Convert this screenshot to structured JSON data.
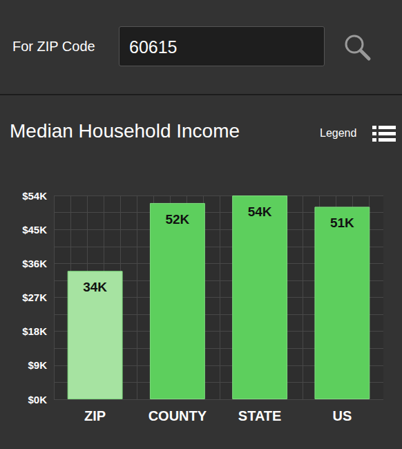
{
  "page": {
    "search_label": "For ZIP Code",
    "zip_code": "60615",
    "legend_button": "Legend"
  },
  "chart_data": {
    "type": "bar",
    "title": "Median Household Income",
    "categories": [
      "ZIP",
      "COUNTY",
      "STATE",
      "US"
    ],
    "values": [
      34000,
      52000,
      54000,
      51000
    ],
    "value_labels": [
      "34K",
      "52K",
      "54K",
      "51K"
    ],
    "colors": [
      "#a6e3a1",
      "#5dcf5d",
      "#5dcf5d",
      "#5dcf5d"
    ],
    "ylim": [
      0,
      54000
    ],
    "yticks": [
      {
        "value": 0,
        "label": "$0K"
      },
      {
        "value": 9000,
        "label": "$9K"
      },
      {
        "value": 18000,
        "label": "$18K"
      },
      {
        "value": 27000,
        "label": "$27K"
      },
      {
        "value": 36000,
        "label": "$36K"
      },
      {
        "value": 45000,
        "label": "$45K"
      },
      {
        "value": 54000,
        "label": "$54K"
      }
    ],
    "grid": true,
    "data_labels": true
  }
}
